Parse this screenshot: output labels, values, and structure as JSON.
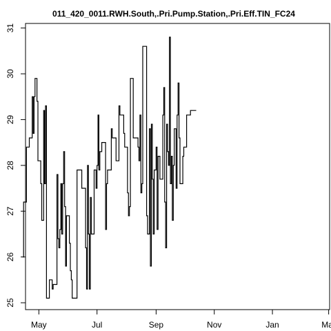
{
  "chart_data": {
    "type": "line",
    "title": "011_420_0011.RWH.South,.Pri.Pump.Station,.Pri.Eff.TIN_FC24",
    "xlabel": "",
    "ylabel": "",
    "x_tick_labels": [
      "May",
      "Jul",
      "Sep",
      "Nov",
      "Jan",
      "Mar"
    ],
    "y_ticks": [
      25,
      26,
      27,
      28,
      29,
      30,
      31
    ],
    "ylim": [
      24.85,
      31.1
    ],
    "x_range_days": [
      -14,
      305
    ],
    "x_tick_days": [
      0,
      61,
      123,
      184,
      245,
      304
    ],
    "grid": false,
    "series": [
      {
        "name": "",
        "points": [
          [
            -17,
            26.0
          ],
          [
            -16,
            27.2
          ],
          [
            -14,
            27.2
          ],
          [
            -13,
            28.4
          ],
          [
            -11,
            28.4
          ],
          [
            -10,
            28.6
          ],
          [
            -8,
            28.6
          ],
          [
            -7,
            29.5
          ],
          [
            -6,
            28.7
          ],
          [
            -5,
            29.5
          ],
          [
            -4,
            29.9
          ],
          [
            -2,
            29.4
          ],
          [
            -1,
            28.1
          ],
          [
            1,
            28.1
          ],
          [
            2,
            27.6
          ],
          [
            3,
            26.8
          ],
          [
            4,
            26.8
          ],
          [
            5,
            29.2
          ],
          [
            6,
            27.6
          ],
          [
            7,
            29.3
          ],
          [
            8,
            25.1
          ],
          [
            9,
            25.1
          ],
          [
            11,
            25.5
          ],
          [
            13,
            25.5
          ],
          [
            14,
            25.3
          ],
          [
            15,
            25.4
          ],
          [
            18,
            25.4
          ],
          [
            19,
            27.8
          ],
          [
            20,
            26.4
          ],
          [
            21,
            26.2
          ],
          [
            22,
            26.6
          ],
          [
            23,
            27.6
          ],
          [
            24,
            26.5
          ],
          [
            25,
            27.6
          ],
          [
            26,
            28.3
          ],
          [
            27,
            27.1
          ],
          [
            28,
            25.8
          ],
          [
            29,
            26.9
          ],
          [
            31,
            26.9
          ],
          [
            32,
            26.3
          ],
          [
            33,
            25.7
          ],
          [
            34,
            25.5
          ],
          [
            35,
            25.1
          ],
          [
            39,
            25.1
          ],
          [
            40,
            27.9
          ],
          [
            44,
            27.9
          ],
          [
            45,
            27.5
          ],
          [
            48,
            27.5
          ],
          [
            49,
            26.2
          ],
          [
            50,
            25.3
          ],
          [
            51,
            28.0
          ],
          [
            52,
            26.5
          ],
          [
            53,
            25.3
          ],
          [
            54,
            27.3
          ],
          [
            55,
            26.5
          ],
          [
            57,
            26.5
          ],
          [
            58,
            27.9
          ],
          [
            59,
            27.9
          ],
          [
            60,
            27.5
          ],
          [
            61,
            28.0
          ],
          [
            62,
            29.1
          ],
          [
            63,
            27.9
          ],
          [
            64,
            28.3
          ],
          [
            66,
            28.5
          ],
          [
            69,
            28.5
          ],
          [
            70,
            26.6
          ],
          [
            71,
            27.6
          ],
          [
            72,
            27.9
          ],
          [
            75,
            27.9
          ],
          [
            76,
            28.8
          ],
          [
            77,
            28.6
          ],
          [
            80,
            28.6
          ],
          [
            81,
            28.1
          ],
          [
            83,
            28.1
          ],
          [
            84,
            29.3
          ],
          [
            85,
            29.1
          ],
          [
            88,
            29.1
          ],
          [
            89,
            28.7
          ],
          [
            90,
            28.4
          ],
          [
            92,
            28.4
          ],
          [
            93,
            27.4
          ],
          [
            94,
            26.9
          ],
          [
            95,
            27.1
          ],
          [
            96,
            29.9
          ],
          [
            98,
            29.9
          ],
          [
            99,
            28.6
          ],
          [
            103,
            28.6
          ],
          [
            104,
            28.4
          ],
          [
            105,
            28.1
          ],
          [
            106,
            29.1
          ],
          [
            107,
            27.4
          ],
          [
            108,
            27.6
          ],
          [
            109,
            30.6
          ],
          [
            112,
            30.6
          ],
          [
            113,
            26.9
          ],
          [
            114,
            26.5
          ],
          [
            115,
            26.5
          ],
          [
            116,
            28.8
          ],
          [
            117,
            25.8
          ],
          [
            118,
            28.9
          ],
          [
            119,
            27.7
          ],
          [
            120,
            26.5
          ],
          [
            121,
            27.9
          ],
          [
            122,
            27.9
          ],
          [
            123,
            28.4
          ],
          [
            124,
            26.6
          ],
          [
            125,
            28.2
          ],
          [
            126,
            28.2
          ],
          [
            127,
            27.7
          ],
          [
            129,
            27.7
          ],
          [
            130,
            29.1
          ],
          [
            131,
            29.7
          ],
          [
            132,
            27.2
          ],
          [
            133,
            26.2
          ],
          [
            134,
            28.9
          ],
          [
            135,
            28.3
          ],
          [
            136,
            28.0
          ],
          [
            137,
            30.8
          ],
          [
            138,
            27.6
          ],
          [
            139,
            28.2
          ],
          [
            140,
            26.8
          ],
          [
            141,
            28.0
          ],
          [
            142,
            28.8
          ],
          [
            143,
            28.8
          ],
          [
            144,
            27.5
          ],
          [
            145,
            29.1
          ],
          [
            146,
            29.8
          ],
          [
            147,
            28.6
          ],
          [
            148,
            27.6
          ],
          [
            150,
            27.6
          ],
          [
            151,
            28.2
          ],
          [
            152,
            28.4
          ],
          [
            154,
            28.4
          ],
          [
            155,
            29.1
          ],
          [
            158,
            29.1
          ],
          [
            159,
            29.2
          ],
          [
            165,
            29.2
          ]
        ]
      }
    ]
  }
}
